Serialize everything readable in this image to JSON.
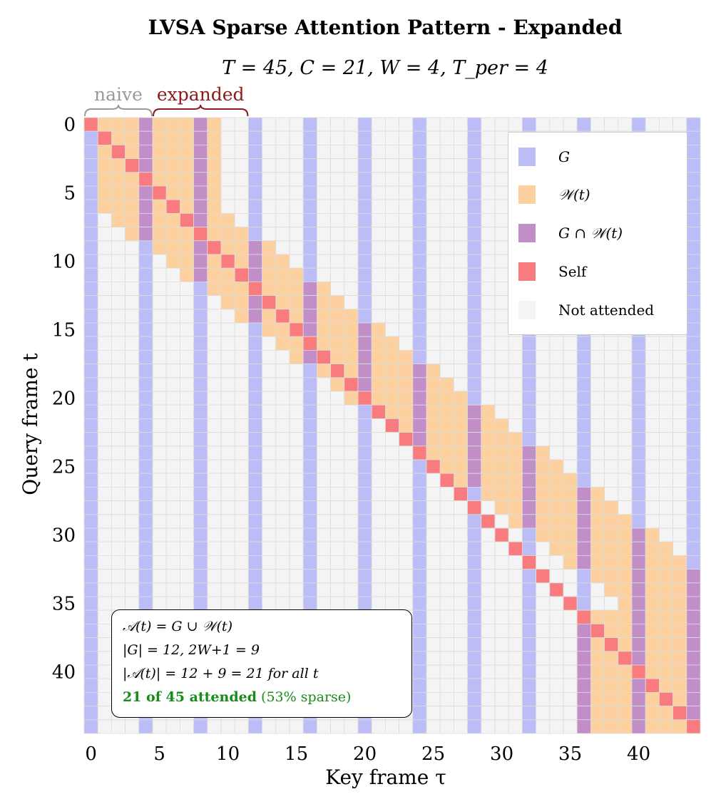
{
  "title": "LVSA Sparse Attention Pattern - Expanded",
  "subtitle": "T = 45,  C = 21,  W = 4,  T_per = 4",
  "bracket_labels": {
    "naive": "naive",
    "expanded": "expanded"
  },
  "colors": {
    "G": "#bcbcf7",
    "W": "#fdd0a0",
    "G_and_W": "#c18ec7",
    "self": "#f97b7e",
    "not_attended": "#f4f4f4",
    "grid": "#dddddd",
    "naive_bracket": "#999999",
    "expanded_bracket": "#8b1a1a"
  },
  "legend": [
    {
      "label": "G",
      "color_key": "G"
    },
    {
      "label": "𝒲(t)",
      "color_key": "W"
    },
    {
      "label": "G ∩ 𝒲(t)",
      "color_key": "G_and_W"
    },
    {
      "label": "Self",
      "color_key": "self"
    },
    {
      "label": "Not attended",
      "color_key": "not_attended"
    }
  ],
  "info_box": {
    "line1": "𝒜(t) = G ∪ 𝒲(t)",
    "line2": "|G| = 12,   2W+1 = 9",
    "line3": "|𝒜(t)| = 12 + 9 = 21  for all t",
    "line4_bold": "21 of 45 attended",
    "line4_rest": " (53% sparse)"
  },
  "chart_data": {
    "type": "heatmap",
    "title": "LVSA Sparse Attention Pattern - Expanded",
    "subtitle": "T = 45, C = 21, W = 4, T_per = 4",
    "xlabel": "Key frame τ",
    "ylabel": "Query frame t",
    "T": 45,
    "C": 21,
    "W": 4,
    "T_per": 4,
    "global_frames": [
      0,
      4,
      8,
      12,
      16,
      20,
      24,
      28,
      32,
      36,
      40,
      44
    ],
    "window_size": 9,
    "window_start_by_query": [
      1,
      1,
      1,
      1,
      1,
      1,
      1,
      2,
      3,
      5,
      6,
      7,
      9,
      10,
      11,
      13,
      14,
      15,
      17,
      18,
      19,
      21,
      22,
      23,
      25,
      26,
      27,
      29,
      30,
      31,
      33,
      34,
      35,
      37,
      38,
      39,
      36,
      36,
      36,
      36,
      36,
      36,
      36,
      36,
      36
    ],
    "x_ticks": [
      0,
      5,
      10,
      15,
      20,
      25,
      30,
      35,
      40
    ],
    "y_ticks": [
      0,
      5,
      10,
      15,
      20,
      25,
      30,
      35,
      40
    ],
    "x_tick_labels": [
      "0",
      "5",
      "10",
      "15",
      "20",
      "25",
      "30",
      "35",
      "40"
    ],
    "y_tick_labels": [
      "0",
      "5",
      "10",
      "15",
      "20",
      "25",
      "30",
      "35",
      "40"
    ],
    "legend_placement": "top-right",
    "grid": true
  }
}
